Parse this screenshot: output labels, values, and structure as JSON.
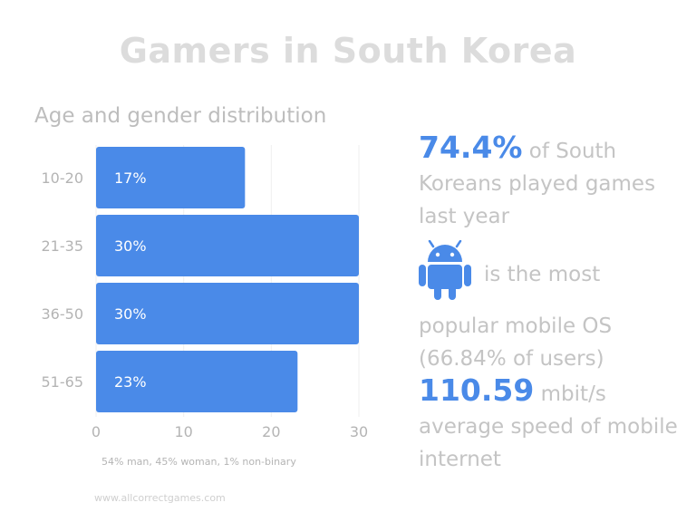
{
  "header": {
    "title": "Gamers in South Korea"
  },
  "chart_data": {
    "type": "bar",
    "orientation": "horizontal",
    "title": "Age and gender distribution",
    "categories": [
      "10-20",
      "21-35",
      "36-50",
      "51-65"
    ],
    "values": [
      17,
      30,
      30,
      23
    ],
    "data_labels": [
      "17%",
      "30%",
      "30%",
      "23%"
    ],
    "x_ticks": [
      "0",
      "10",
      "20",
      "30"
    ],
    "xlim": [
      0,
      30
    ],
    "bar_color": "#4a8ae8",
    "grid": true
  },
  "note": "54% man, 45% woman, 1% non-binary",
  "site": "www.allcorrectgames.com",
  "stats": {
    "s1_big": "74.4%",
    "s1_text_a": " of South",
    "s1_text_b": "Koreans played games last year",
    "s2_icon": "android-icon",
    "s2_text_a": "is the most",
    "s2_text_b": "popular mobile OS (66.84% of users)",
    "s3_big": "110.59",
    "s3_text_a": " mbit/s",
    "s3_text_b": "average speed of mobile internet"
  },
  "colors": {
    "accent": "#4a8ae8",
    "muted_text": "#c4c4c4"
  }
}
